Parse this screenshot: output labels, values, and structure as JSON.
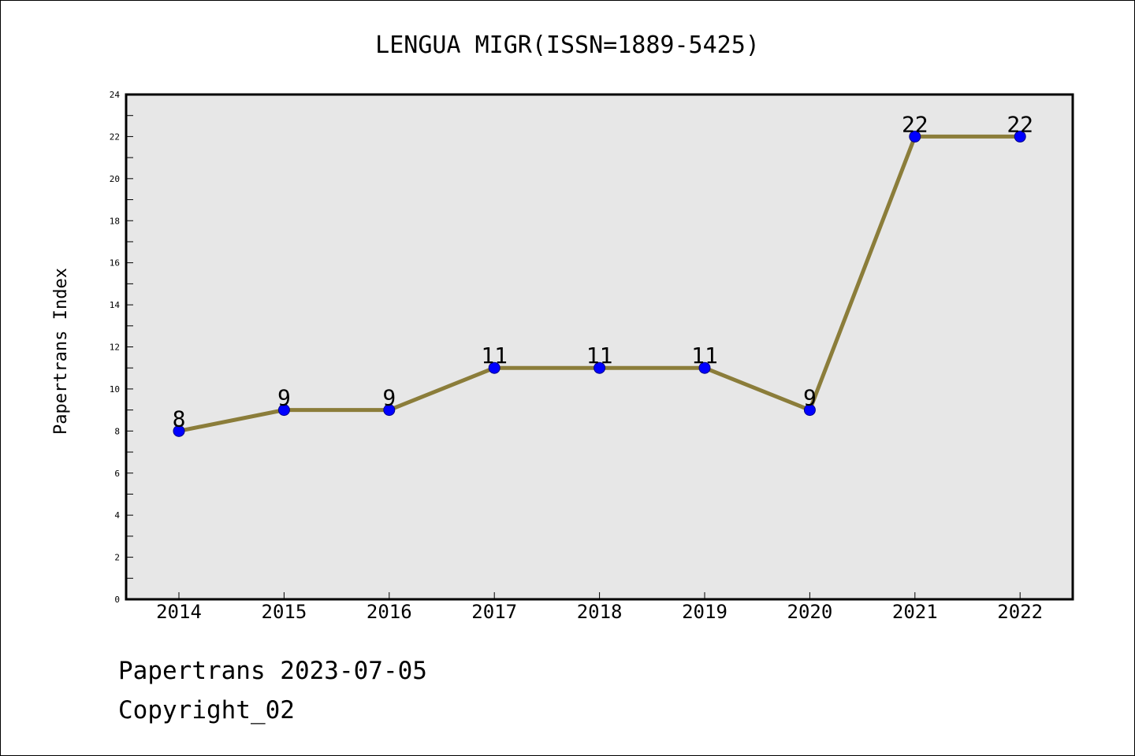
{
  "chart_data": {
    "type": "line",
    "title": "LENGUA MIGR(ISSN=1889-5425)",
    "xlabel": "",
    "ylabel": "Papertrans Index",
    "categories": [
      "2014",
      "2015",
      "2016",
      "2017",
      "2018",
      "2019",
      "2020",
      "2021",
      "2022"
    ],
    "series": [
      {
        "values": [
          8,
          9,
          9,
          11,
          11,
          11,
          9,
          22,
          22
        ]
      }
    ],
    "ylim": [
      0,
      24
    ],
    "yticks": [
      0,
      2,
      4,
      6,
      8,
      10,
      12,
      14,
      16,
      18,
      20,
      22,
      24
    ],
    "grid": false,
    "data_labels": true,
    "colors": {
      "line": "#8B7D3A",
      "marker": "#0000FF",
      "marker_edge": "#00008B",
      "plot_background": "#E7E7E7",
      "axes": "#000000"
    }
  },
  "footer": {
    "date_line": "Papertrans 2023-07-05",
    "copyright": "Copyright_02"
  }
}
